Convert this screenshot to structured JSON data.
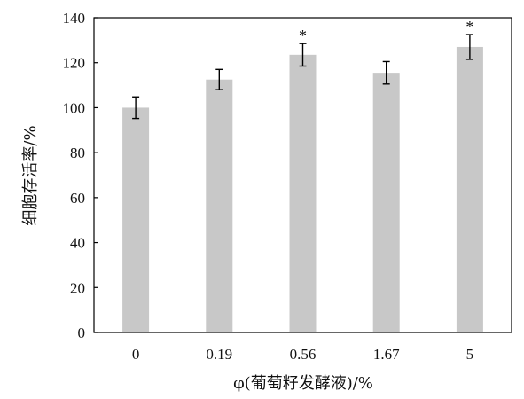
{
  "chart_data": {
    "type": "bar",
    "title": "",
    "xlabel": "φ(葡萄籽发酵液)/%",
    "ylabel": "细胞存活率/%",
    "categories": [
      "0",
      "0.19",
      "0.56",
      "1.67",
      "5"
    ],
    "values": [
      100,
      112.5,
      123.5,
      115.5,
      127
    ],
    "errors": [
      4.8,
      4.5,
      5.0,
      5.0,
      5.5
    ],
    "significance": [
      "",
      "",
      "*",
      "",
      "*"
    ],
    "ylim": [
      0,
      140
    ],
    "yticks": [
      0,
      20,
      40,
      60,
      80,
      100,
      120,
      140
    ],
    "grid": false,
    "bar_color": "#c8c8c8",
    "axis_color": "#000000"
  }
}
